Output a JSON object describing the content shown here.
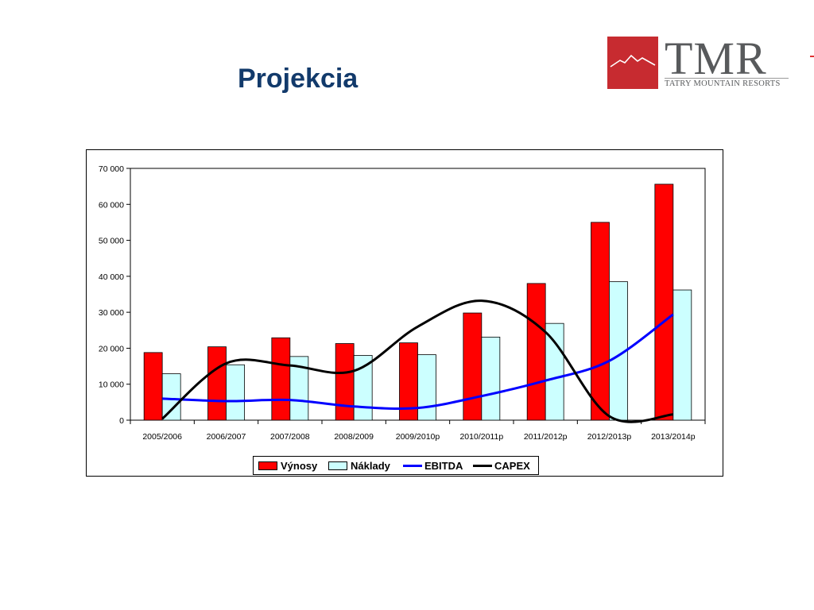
{
  "slide": {
    "title": "Projekcia"
  },
  "logo": {
    "name": "TMR",
    "tagline": "TATRY MOUNTAIN RESORTS",
    "color_box": "#c72b30",
    "color_text": "#585a5c"
  },
  "chart_data": {
    "type": "bar",
    "title": "",
    "xlabel": "",
    "ylabel": "",
    "ylim": [
      0,
      70000
    ],
    "yticks": [
      "0",
      "10 000",
      "20 000",
      "30 000",
      "40 000",
      "50 000",
      "60 000",
      "70 000"
    ],
    "categories": [
      "2005/2006",
      "2006/2007",
      "2007/2008",
      "2008/2009",
      "2009/2010p",
      "2010/2011p",
      "2011/2012p",
      "2012/2013p",
      "2013/2014p"
    ],
    "legend_position": "bottom",
    "grid": false,
    "series": [
      {
        "name": "Výnosy",
        "kind": "bar",
        "color": "#ff0000",
        "values": [
          18800,
          20400,
          22900,
          21300,
          21500,
          29800,
          38000,
          55000,
          65600
        ]
      },
      {
        "name": "Náklady",
        "kind": "bar",
        "color": "#ccffff",
        "values": [
          12900,
          15400,
          17700,
          18000,
          18200,
          23100,
          26900,
          38500,
          36200
        ]
      },
      {
        "name": "EBITDA",
        "kind": "line",
        "color": "#0000ff",
        "values": [
          6000,
          5300,
          5600,
          3800,
          3400,
          6700,
          11000,
          16500,
          29400
        ]
      },
      {
        "name": "CAPEX",
        "kind": "line",
        "color": "#000000",
        "values": [
          400,
          15800,
          15200,
          13700,
          26000,
          33200,
          24500,
          1100,
          1600
        ]
      }
    ]
  }
}
